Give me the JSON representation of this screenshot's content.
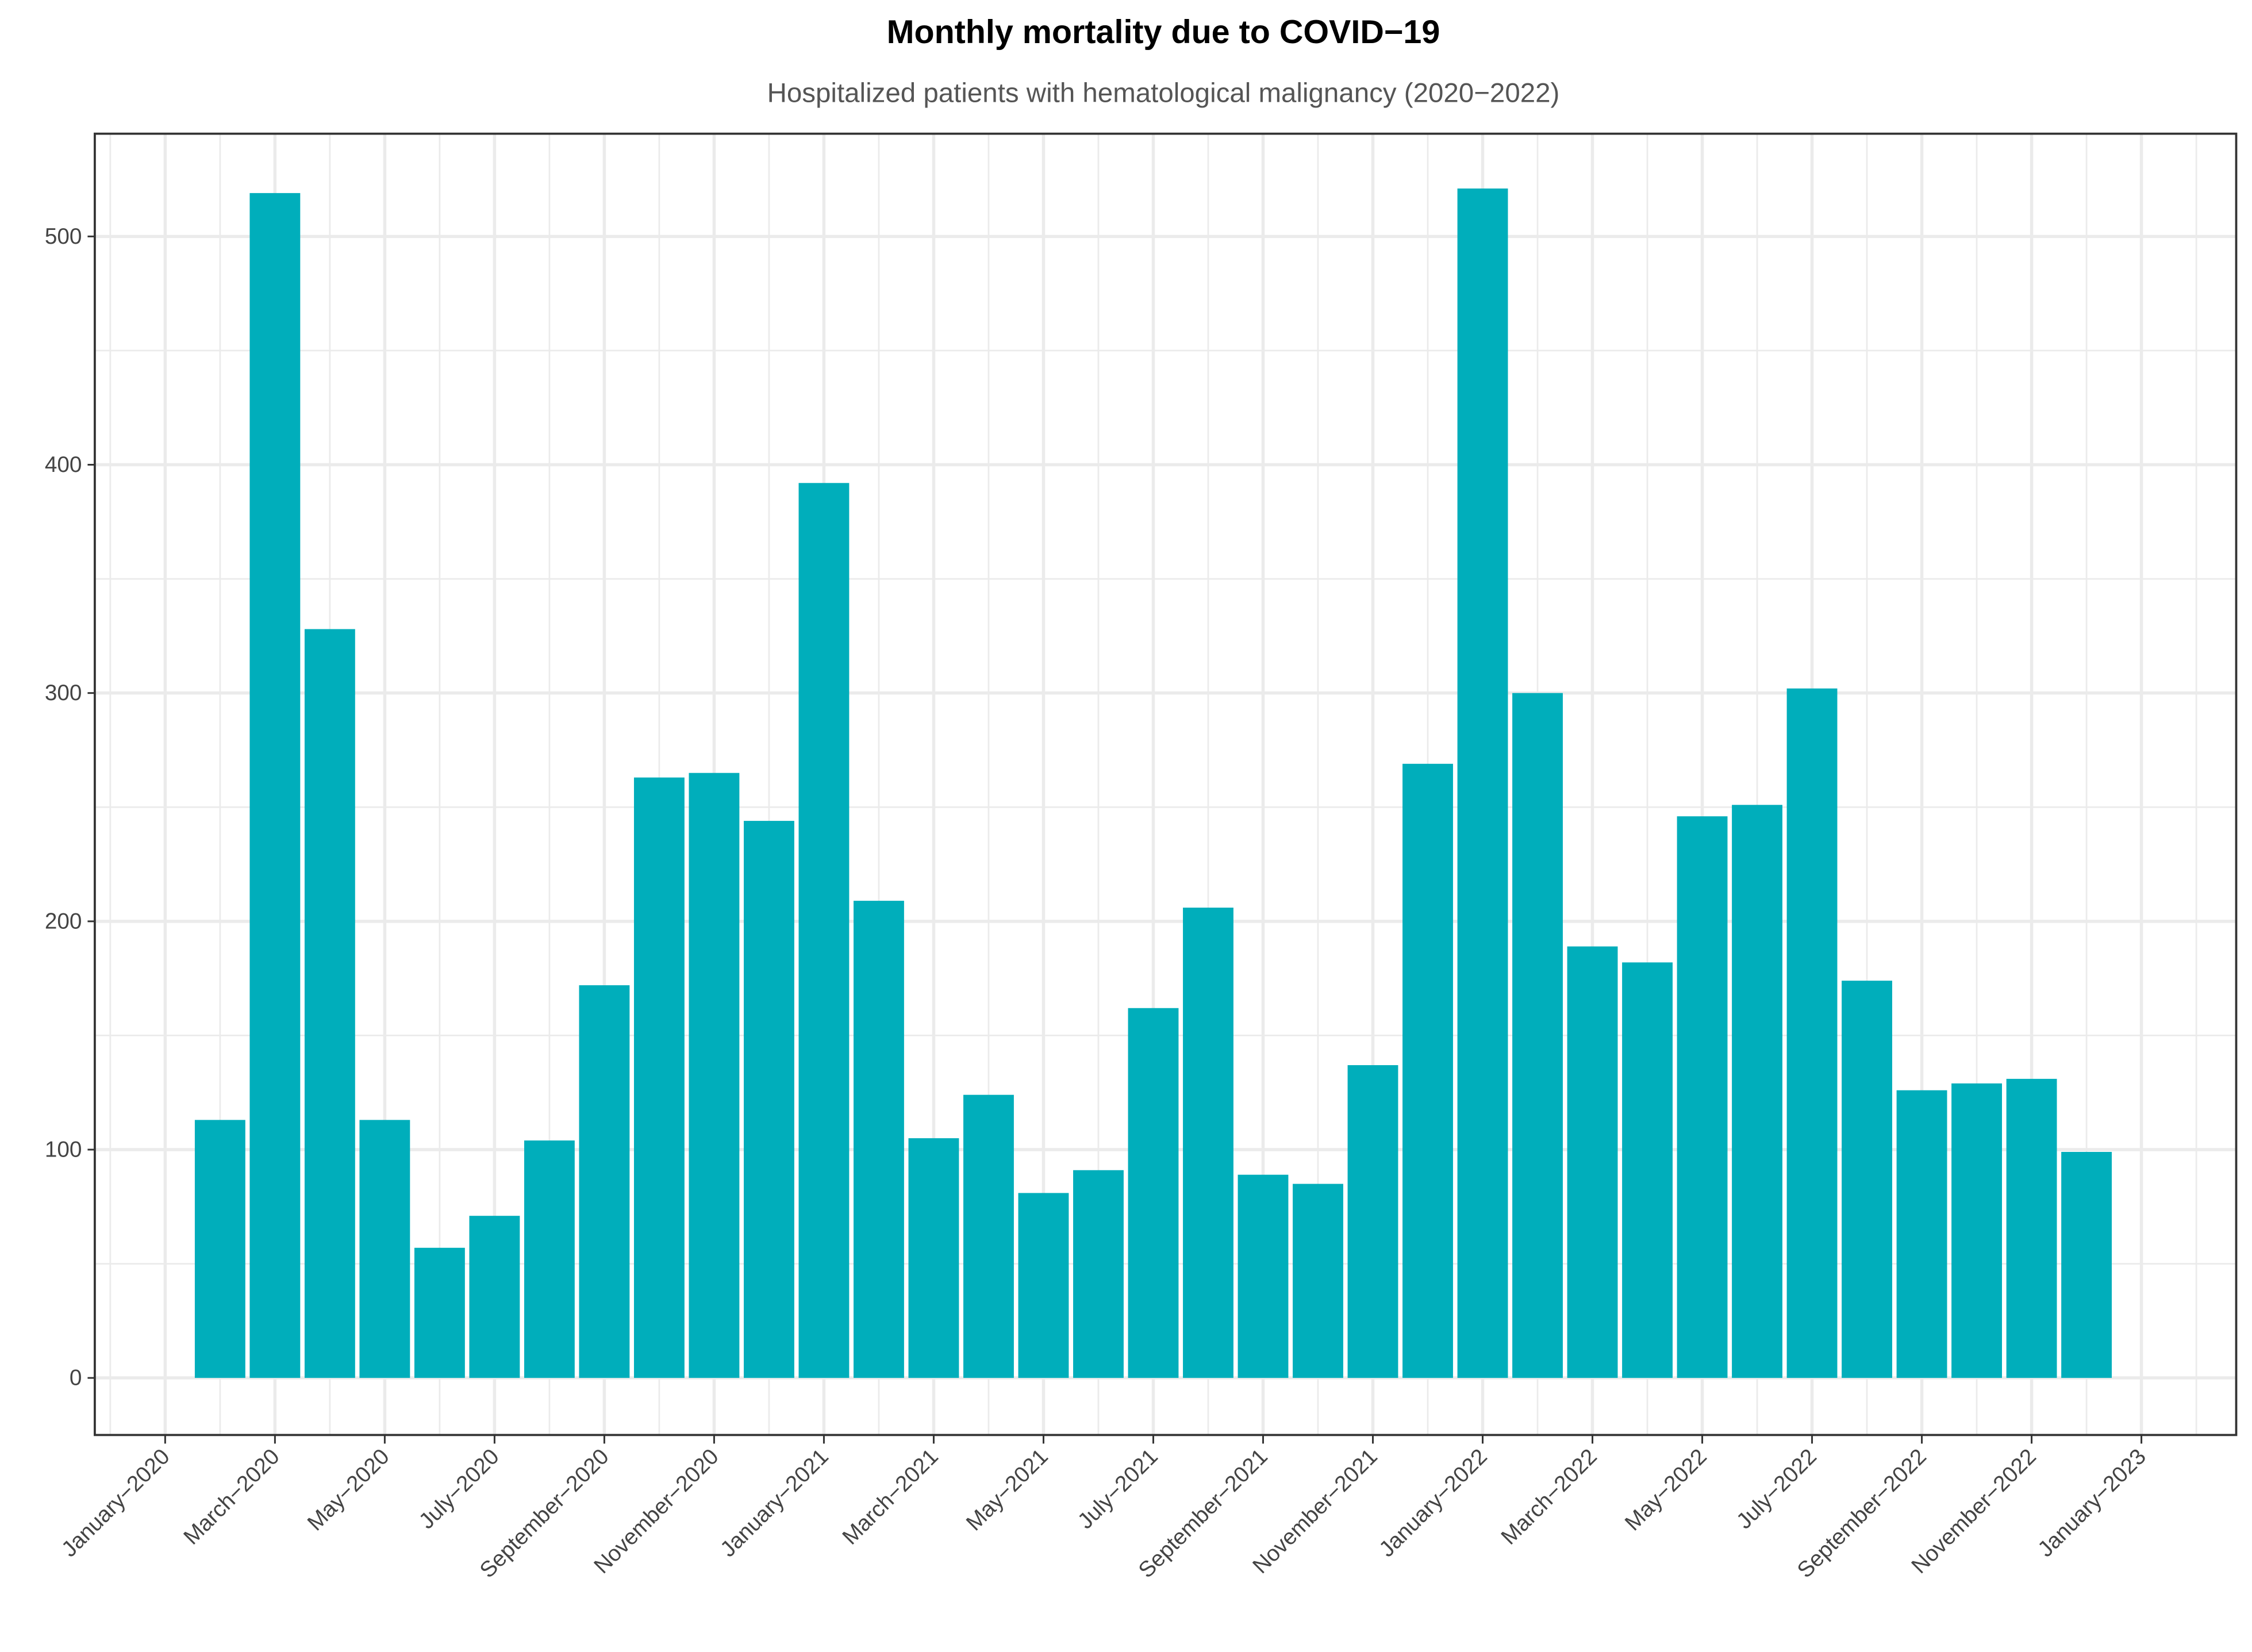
{
  "chart_data": {
    "type": "bar",
    "title": "Monthly mortality due to COVID−19",
    "subtitle": "Hospitalized patients with hematological malignancy (2020−2022)",
    "xlabel": "",
    "ylabel": "",
    "bar_color": "#00AEBB",
    "grid": true,
    "ylim": [
      -25,
      545
    ],
    "y_ticks": [
      "0",
      "100",
      "200",
      "300",
      "400",
      "500"
    ],
    "x_ticks": [
      "January−2020",
      "March−2020",
      "May−2020",
      "July−2020",
      "September−2020",
      "November−2020",
      "January−2021",
      "March−2021",
      "May−2021",
      "July−2021",
      "September−2021",
      "November−2021",
      "January−2022",
      "March−2022",
      "May−2022",
      "July−2022",
      "September−2022",
      "November−2022",
      "January−2023"
    ],
    "categories": [
      "2020-02",
      "2020-03",
      "2020-04",
      "2020-05",
      "2020-06",
      "2020-07",
      "2020-08",
      "2020-09",
      "2020-10",
      "2020-11",
      "2020-12",
      "2021-01",
      "2021-02",
      "2021-03",
      "2021-04",
      "2021-05",
      "2021-06",
      "2021-07",
      "2021-08",
      "2021-09",
      "2021-10",
      "2021-11",
      "2021-12",
      "2022-01",
      "2022-02",
      "2022-03",
      "2022-04",
      "2022-05",
      "2022-06",
      "2022-07",
      "2022-08",
      "2022-09",
      "2022-10",
      "2022-11",
      "2022-12"
    ],
    "values": [
      113,
      519,
      328,
      113,
      57,
      71,
      104,
      172,
      263,
      265,
      244,
      392,
      209,
      105,
      124,
      81,
      91,
      162,
      206,
      89,
      85,
      137,
      269,
      521,
      300,
      189,
      182,
      246,
      251,
      302,
      174,
      126,
      129,
      131,
      99
    ]
  }
}
